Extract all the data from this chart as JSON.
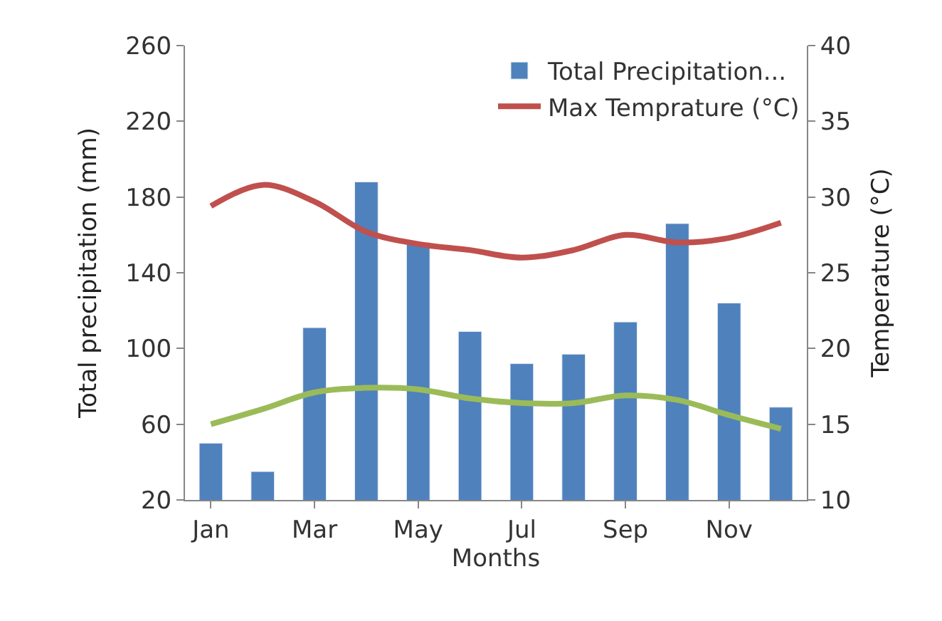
{
  "chart_data": {
    "type": "bar",
    "xlabel": "Months",
    "ylabel": "Total precipitation (mm)",
    "y2label": "Temperature (°C)",
    "categories": [
      "Jan",
      null,
      "Mar",
      null,
      "May",
      null,
      "Jul",
      null,
      "Sep",
      null,
      "Nov",
      null
    ],
    "series": [
      {
        "name": "Total Precipitation...",
        "color": "#4f81bd",
        "values": [
          50,
          35,
          111,
          188,
          156,
          109,
          92,
          97,
          114,
          166,
          124,
          69
        ]
      },
      {
        "name": "Max Temprature (°C)",
        "type": "line",
        "axis": "y2",
        "color": "#c0504d",
        "values": [
          29.4,
          30.8,
          29.7,
          27.7,
          26.9,
          26.5,
          26.0,
          26.5,
          27.5,
          27.0,
          27.3,
          28.3
        ]
      },
      {
        "type": "line",
        "axis": "y2",
        "color": "#9bbb59",
        "values": [
          15.0,
          16.0,
          17.1,
          17.4,
          17.3,
          16.7,
          16.4,
          16.4,
          16.9,
          16.6,
          15.6,
          14.7
        ]
      }
    ],
    "ylim": [
      20,
      260
    ],
    "yticks": [
      20,
      60,
      100,
      140,
      180,
      220,
      260
    ],
    "y2lim": [
      10,
      40
    ],
    "y2ticks": [
      10,
      15,
      20,
      25,
      30,
      35,
      40
    ],
    "legend": "top right",
    "marker": "none",
    "line_style": "solid"
  }
}
